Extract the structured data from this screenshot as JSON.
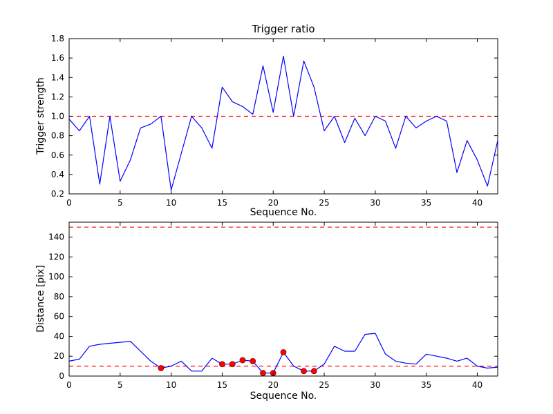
{
  "figure": {
    "background": "#ffffff",
    "axis_color": "#000000",
    "line_color": "#0000ff",
    "threshold_color": "#ff0000",
    "marker_face": "#ff0000",
    "marker_edge": "#7f0000"
  },
  "chart_data": [
    {
      "type": "line",
      "title": "Trigger ratio",
      "xlabel": "Sequence No.",
      "ylabel": "Trigger strength",
      "xlim": [
        0,
        42
      ],
      "ylim": [
        0.2,
        1.8
      ],
      "xticks": [
        0,
        5,
        10,
        15,
        20,
        25,
        30,
        35,
        40
      ],
      "xtick_labels": [
        "0",
        "5",
        "10",
        "15",
        "20",
        "25",
        "30",
        "35",
        "40"
      ],
      "yticks": [
        0.2,
        0.4,
        0.6,
        0.8,
        1.0,
        1.2,
        1.4,
        1.6,
        1.8
      ],
      "ytick_labels": [
        "0.2",
        "0.4",
        "0.6",
        "0.8",
        "1.0",
        "1.2",
        "1.4",
        "1.6",
        "1.8"
      ],
      "grid": false,
      "legend": null,
      "thresholds": [
        1.0
      ],
      "x": [
        0,
        1,
        2,
        3,
        4,
        5,
        6,
        7,
        8,
        9,
        10,
        11,
        12,
        13,
        14,
        15,
        16,
        17,
        18,
        19,
        20,
        21,
        22,
        23,
        24,
        25,
        26,
        27,
        28,
        29,
        30,
        31,
        32,
        33,
        34,
        35,
        36,
        37,
        38,
        39,
        40,
        41,
        42
      ],
      "y": [
        0.97,
        0.85,
        1.0,
        0.3,
        1.0,
        0.33,
        0.55,
        0.88,
        0.92,
        1.0,
        0.24,
        0.62,
        1.0,
        0.88,
        0.67,
        1.3,
        1.15,
        1.1,
        1.02,
        1.52,
        1.04,
        1.62,
        1.0,
        1.57,
        1.3,
        0.85,
        1.0,
        0.73,
        0.98,
        0.8,
        1.0,
        0.95,
        0.67,
        1.0,
        0.88,
        0.95,
        1.0,
        0.95,
        0.42,
        0.75,
        0.55,
        0.28,
        0.75
      ],
      "markers": []
    },
    {
      "type": "line",
      "title": "",
      "xlabel": "Sequence No.",
      "ylabel": "Distance [pix]",
      "xlim": [
        0,
        42
      ],
      "ylim": [
        0,
        155
      ],
      "xticks": [
        0,
        5,
        10,
        15,
        20,
        25,
        30,
        35,
        40
      ],
      "xtick_labels": [
        "0",
        "5",
        "10",
        "15",
        "20",
        "25",
        "30",
        "35",
        "40"
      ],
      "yticks": [
        0,
        20,
        40,
        60,
        80,
        100,
        120,
        140
      ],
      "ytick_labels": [
        "0",
        "20",
        "40",
        "60",
        "80",
        "100",
        "120",
        "140"
      ],
      "grid": false,
      "legend": null,
      "thresholds": [
        150,
        10
      ],
      "x": [
        0,
        1,
        2,
        3,
        4,
        5,
        6,
        7,
        8,
        9,
        10,
        11,
        12,
        13,
        14,
        15,
        16,
        17,
        18,
        19,
        20,
        21,
        22,
        23,
        24,
        25,
        26,
        27,
        28,
        29,
        30,
        31,
        32,
        33,
        34,
        35,
        36,
        37,
        38,
        39,
        40,
        41,
        42
      ],
      "y": [
        15,
        17,
        30,
        32,
        33,
        34,
        35,
        25,
        15,
        8,
        10,
        15,
        5,
        5,
        18,
        12,
        12,
        16,
        15,
        3,
        3,
        24,
        10,
        5,
        5,
        12,
        30,
        25,
        25,
        42,
        43,
        22,
        15,
        13,
        12,
        22,
        20,
        18,
        15,
        18,
        10,
        8,
        9
      ],
      "markers": [
        [
          9,
          8
        ],
        [
          15,
          12
        ],
        [
          16,
          12
        ],
        [
          17,
          16
        ],
        [
          18,
          15
        ],
        [
          19,
          3
        ],
        [
          20,
          3
        ],
        [
          21,
          24
        ],
        [
          23,
          5
        ],
        [
          24,
          5
        ]
      ]
    }
  ]
}
